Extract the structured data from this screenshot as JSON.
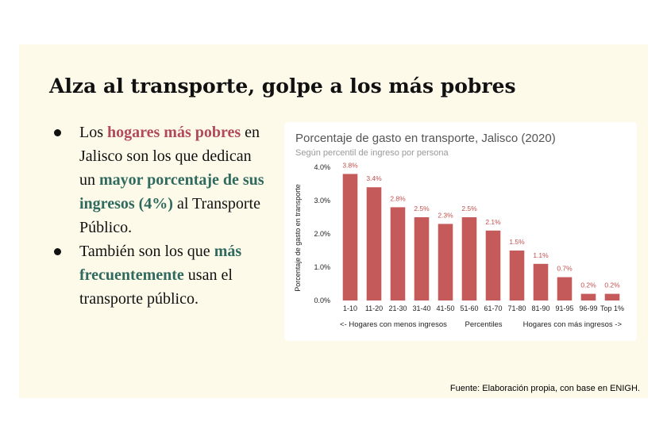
{
  "slide": {
    "title": "Alza al transporte, golpe a los más pobres",
    "bullet1": {
      "t1": "Los ",
      "h1": "hogares más pobres",
      "t2": " en Jalisco son los que dedican un ",
      "h2": "mayor porcentaje de sus ingresos (4%)",
      "t3": " al Transporte Público."
    },
    "bullet2": {
      "t1": "También son los que ",
      "h1": "más frecuentemente",
      "t2": "  usan el transporte público."
    },
    "footer": "Fuente: Elaboración propia, con base en ENIGH."
  },
  "colors": {
    "bar": "#c45a5a",
    "label": "#c0504d",
    "highlight_red": "#b24a5c",
    "highlight_green": "#2f6a5e"
  },
  "chart_data": {
    "type": "bar",
    "title": "Porcentaje de gasto en transporte, Jalisco (2020)",
    "subtitle": "Según percentil de ingreso por persona",
    "ylabel": "Porcentaje de gasto en transporte",
    "xlabel": "Percentiles",
    "xlabel_left": "<- Hogares con menos ingresos",
    "xlabel_right": "Hogares con más ingresos ->",
    "ylim": [
      0,
      4
    ],
    "yticks": [
      0,
      1,
      2,
      3,
      4
    ],
    "ytick_labels": [
      "0.0%",
      "1.0%",
      "2.0%",
      "3.0%",
      "4.0%"
    ],
    "grid": false,
    "categories": [
      "1-10",
      "11-20",
      "21-30",
      "31-40",
      "41-50",
      "51-60",
      "61-70",
      "71-80",
      "81-90",
      "91-95",
      "96-99",
      "Top 1%"
    ],
    "values": [
      3.8,
      3.4,
      2.8,
      2.5,
      2.3,
      2.5,
      2.1,
      1.5,
      1.1,
      0.7,
      0.2,
      0.2
    ],
    "value_labels": [
      "3.8%",
      "3.4%",
      "2.8%",
      "2.5%",
      "2.3%",
      "2.5%",
      "2.1%",
      "1.5%",
      "1.1%",
      "0.7%",
      "0.2%",
      "0.2%"
    ]
  }
}
